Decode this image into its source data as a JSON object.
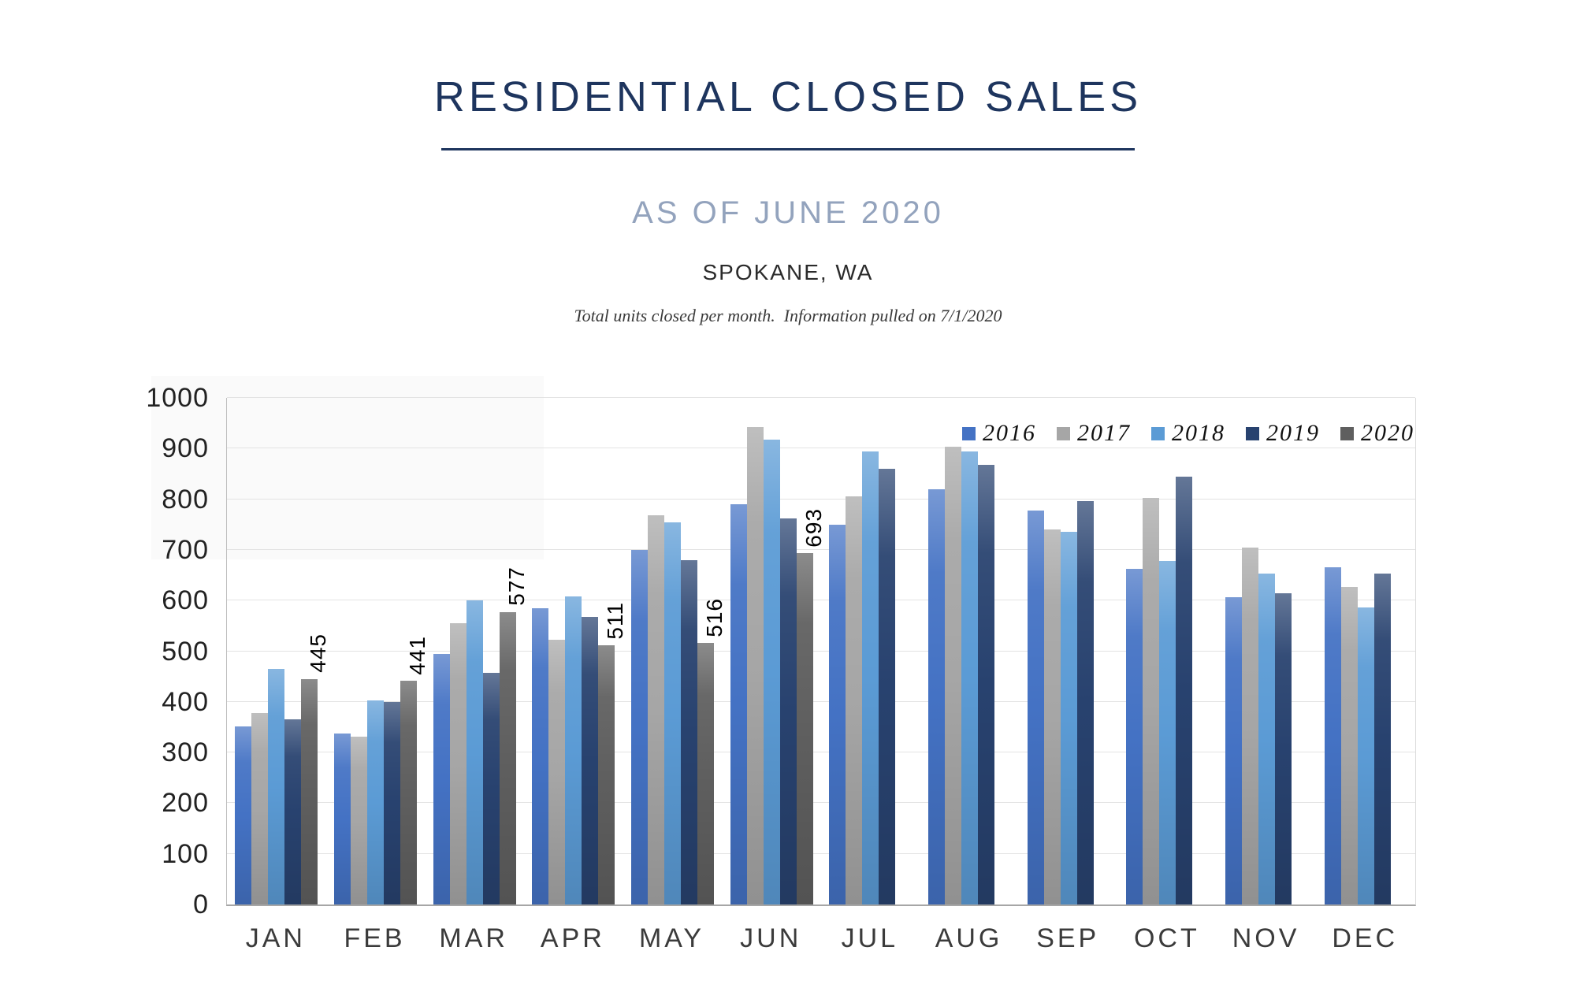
{
  "header": {
    "title": "RESIDENTIAL CLOSED SALES",
    "subtitle": "AS OF JUNE 2020",
    "location": "SPOKANE, WA",
    "note": "Total units closed per month.  Information pulled on 7/1/2020"
  },
  "colors": {
    "title": "#1E355E",
    "title_rule": "#1E355E",
    "subtitle": "#93A3BD",
    "gridline": "#E3E3E3",
    "axis": "#A6A6A6"
  },
  "chart_data": {
    "type": "bar",
    "title": "RESIDENTIAL CLOSED SALES",
    "subtitle": "AS OF JUNE 2020",
    "region": "SPOKANE, WA",
    "xlabel": "",
    "ylabel": "",
    "ylim": [
      0,
      1000
    ],
    "ytick_step": 100,
    "yticks": [
      0,
      100,
      200,
      300,
      400,
      500,
      600,
      700,
      800,
      900,
      1000
    ],
    "grid": true,
    "legend_position": "top-right",
    "categories": [
      "JAN",
      "FEB",
      "MAR",
      "APR",
      "MAY",
      "JUN",
      "JUL",
      "AUG",
      "SEP",
      "OCT",
      "NOV",
      "DEC"
    ],
    "series": [
      {
        "name": "2016",
        "color": "#4472C4",
        "values": [
          352,
          337,
          495,
          585,
          700,
          790,
          750,
          820,
          778,
          663,
          607,
          665
        ]
      },
      {
        "name": "2017",
        "color": "#A6A6A6",
        "values": [
          378,
          332,
          555,
          523,
          768,
          942,
          805,
          903,
          740,
          802,
          705,
          627
        ]
      },
      {
        "name": "2018",
        "color": "#5B9BD5",
        "values": [
          465,
          403,
          600,
          608,
          755,
          918,
          895,
          895,
          735,
          678,
          653,
          587
        ]
      },
      {
        "name": "2019",
        "color": "#28426F",
        "values": [
          365,
          400,
          458,
          568,
          680,
          762,
          860,
          868,
          797,
          845,
          615,
          653
        ]
      },
      {
        "name": "2020",
        "color": "#5F5F5F",
        "data_labels": true,
        "values": [
          445,
          441,
          577,
          511,
          516,
          693,
          null,
          null,
          null,
          null,
          null,
          null
        ]
      }
    ]
  }
}
